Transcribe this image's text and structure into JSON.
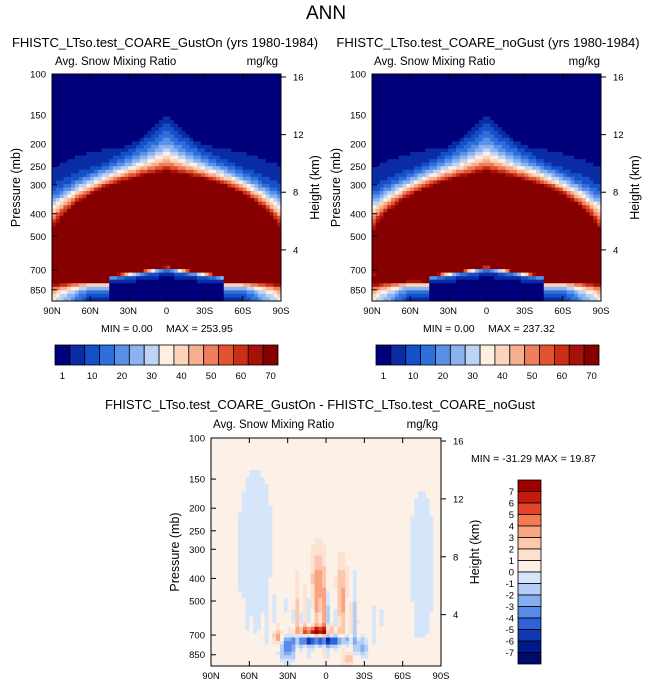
{
  "figure_title": "ANN",
  "chart_data": [
    {
      "type": "heatmap",
      "title": "FHISTC_LTso.test_COARE_GustOn (yrs 1980-1984)",
      "subtitle_left": "Avg. Snow Mixing Ratio",
      "subtitle_right": "mg/kg",
      "xlabel": "",
      "ylabel": "Pressure (mb)",
      "ylabel_right": "Height (km)",
      "x_ticks": [
        "90N",
        "60N",
        "30N",
        "0",
        "30S",
        "60S",
        "90S"
      ],
      "x_tick_values": [
        90,
        60,
        30,
        0,
        -30,
        -60,
        -90
      ],
      "y_ticks": [
        "100",
        "150",
        "200",
        "250",
        "300",
        "400",
        "500",
        "700",
        "850"
      ],
      "y_tick_values": [
        100,
        150,
        200,
        250,
        300,
        400,
        500,
        700,
        850
      ],
      "ylim": [
        100,
        950
      ],
      "height_ticks": [
        "4",
        "8",
        "12",
        "16"
      ],
      "height_tick_values": [
        4,
        8,
        12,
        16
      ],
      "min_label": "MIN =   0.00",
      "max_label": "MAX = 253.95",
      "colorbar_labels": [
        "1",
        "10",
        "20",
        "30",
        "40",
        "50",
        "60",
        "70"
      ],
      "colorbar_values": [
        1,
        5,
        10,
        15,
        20,
        25,
        30,
        35,
        40,
        45,
        50,
        55,
        60,
        65,
        70
      ],
      "field": {
        "kind": "snow",
        "core_max_mg_per_kg": 253.95,
        "core_lat": 0,
        "core_pressure_mb": 550
      }
    },
    {
      "type": "heatmap",
      "title": "FHISTC_LTso.test_COARE_noGust (yrs 1980-1984)",
      "subtitle_left": "Avg. Snow Mixing Ratio",
      "subtitle_right": "mg/kg",
      "xlabel": "",
      "ylabel": "Pressure (mb)",
      "ylabel_right": "Height (km)",
      "x_ticks": [
        "90N",
        "60N",
        "30N",
        "0",
        "30S",
        "60S",
        "90S"
      ],
      "x_tick_values": [
        90,
        60,
        30,
        0,
        -30,
        -60,
        -90
      ],
      "y_ticks": [
        "100",
        "150",
        "200",
        "250",
        "300",
        "400",
        "500",
        "700",
        "850"
      ],
      "y_tick_values": [
        100,
        150,
        200,
        250,
        300,
        400,
        500,
        700,
        850
      ],
      "ylim": [
        100,
        950
      ],
      "height_ticks": [
        "4",
        "8",
        "12",
        "16"
      ],
      "height_tick_values": [
        4,
        8,
        12,
        16
      ],
      "min_label": "MIN =   0.00",
      "max_label": "MAX = 237.32",
      "colorbar_labels": [
        "1",
        "10",
        "20",
        "30",
        "40",
        "50",
        "60",
        "70"
      ],
      "colorbar_values": [
        1,
        5,
        10,
        15,
        20,
        25,
        30,
        35,
        40,
        45,
        50,
        55,
        60,
        65,
        70
      ],
      "field": {
        "kind": "snow",
        "core_max_mg_per_kg": 237.32,
        "core_lat": 0,
        "core_pressure_mb": 550
      }
    },
    {
      "type": "heatmap",
      "title": "FHISTC_LTso.test_COARE_GustOn - FHISTC_LTso.test_COARE_noGust",
      "subtitle_left": "Avg. Snow Mixing Ratio",
      "subtitle_right": "mg/kg",
      "xlabel": "",
      "ylabel": "Pressure (mb)",
      "ylabel_right": "Height (km)",
      "x_ticks": [
        "90N",
        "60N",
        "30N",
        "0",
        "30S",
        "60S",
        "90S"
      ],
      "x_tick_values": [
        90,
        60,
        30,
        0,
        -30,
        -60,
        -90
      ],
      "y_ticks": [
        "100",
        "150",
        "200",
        "250",
        "300",
        "400",
        "500",
        "700",
        "850"
      ],
      "y_tick_values": [
        100,
        150,
        200,
        250,
        300,
        400,
        500,
        700,
        850
      ],
      "ylim": [
        100,
        950
      ],
      "height_ticks": [
        "4",
        "8",
        "12",
        "16"
      ],
      "height_tick_values": [
        4,
        8,
        12,
        16
      ],
      "minmax_label": "MIN = -31.29   MAX =  19.87",
      "min_value": -31.29,
      "max_value": 19.87,
      "colorbar_labels": [
        "7",
        "6",
        "5",
        "4",
        "3",
        "2",
        "1",
        "0",
        "-1",
        "-2",
        "-3",
        "-4",
        "-5",
        "-6",
        "-7"
      ],
      "colorbar_values": [
        7,
        6,
        5,
        4,
        3,
        2,
        1,
        0,
        -1,
        -2,
        -3,
        -4,
        -5,
        -6,
        -7
      ],
      "field": {
        "kind": "difference"
      }
    }
  ],
  "palettes": {
    "sequential": [
      "#00007a",
      "#0a2ca4",
      "#1550c8",
      "#2e6fdc",
      "#5a90e8",
      "#8cb3f0",
      "#bcd4f6",
      "#fdf0e2",
      "#fbd5bb",
      "#f6af8f",
      "#ef7e5e",
      "#e3532f",
      "#cb2d16",
      "#a81109",
      "#860000"
    ],
    "diverging": [
      "#9c0000",
      "#c61a0d",
      "#e34426",
      "#f57a4e",
      "#f9a583",
      "#fcc7ad",
      "#fde2d1",
      "#fdf0e6",
      "#d6e6fa",
      "#b3cff5",
      "#85aef0",
      "#5a8ae8",
      "#2e62d8",
      "#1238b0",
      "#001a8c",
      "#000a6e"
    ]
  }
}
